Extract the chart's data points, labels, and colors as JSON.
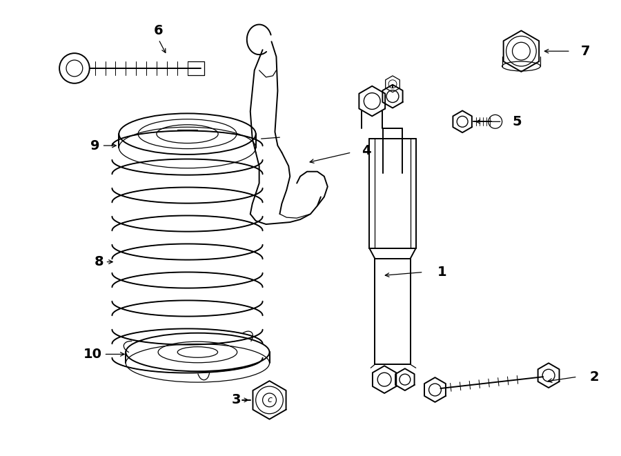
{
  "background_color": "#ffffff",
  "line_color": "#000000",
  "label_color": "#000000",
  "fig_width": 9.0,
  "fig_height": 6.61,
  "dpi": 100
}
